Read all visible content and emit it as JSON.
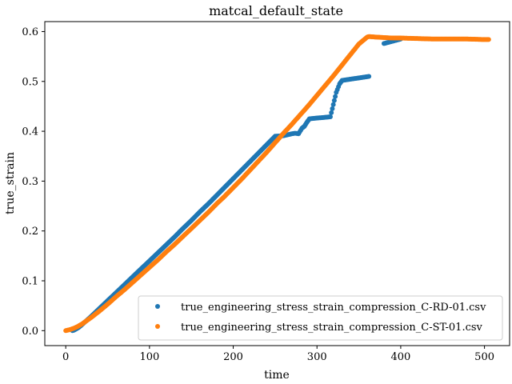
{
  "chart_data": {
    "type": "scatter",
    "title": "matcal_default_state",
    "xlabel": "time",
    "ylabel": "true_strain",
    "xlim": [
      -25,
      530
    ],
    "ylim": [
      -0.03,
      0.62
    ],
    "xticks": [
      0,
      100,
      200,
      300,
      400,
      500
    ],
    "yticks": [
      0.0,
      0.1,
      0.2,
      0.3,
      0.4,
      0.5,
      0.6
    ],
    "ytick_labels": [
      "0.0",
      "0.1",
      "0.2",
      "0.3",
      "0.4",
      "0.5",
      "0.6"
    ],
    "grid": false,
    "legend_position": "lower-right",
    "series": [
      {
        "name": "true_engineering_stress_strain_compression_C-RD-01.csv",
        "color": "#1f77b4",
        "x": [
          8,
          10,
          12,
          15,
          18,
          22,
          26,
          30,
          40,
          50,
          60,
          70,
          80,
          90,
          100,
          110,
          120,
          130,
          140,
          150,
          160,
          170,
          180,
          190,
          200,
          210,
          220,
          230,
          240,
          250,
          260,
          265,
          270,
          274,
          278,
          282,
          285,
          288,
          291,
          316,
          323,
          327,
          330,
          362,
          380,
          400
        ],
        "y": [
          0.0,
          0.001,
          0.003,
          0.006,
          0.01,
          0.016,
          0.022,
          0.028,
          0.044,
          0.06,
          0.076,
          0.092,
          0.108,
          0.124,
          0.14,
          0.156,
          0.172,
          0.188,
          0.205,
          0.221,
          0.238,
          0.254,
          0.271,
          0.288,
          0.305,
          0.322,
          0.339,
          0.356,
          0.373,
          0.39,
          0.391,
          0.393,
          0.395,
          0.396,
          0.395,
          0.406,
          0.41,
          0.418,
          0.425,
          0.429,
          0.478,
          0.495,
          0.502,
          0.51,
          0.576,
          0.585
        ]
      },
      {
        "name": "true_engineering_stress_strain_compression_C-ST-01.csv",
        "color": "#ff7f0e",
        "x": [
          0,
          5,
          10,
          15,
          20,
          30,
          40,
          50,
          60,
          70,
          80,
          90,
          100,
          110,
          120,
          130,
          140,
          150,
          160,
          170,
          180,
          190,
          200,
          210,
          220,
          230,
          240,
          250,
          260,
          270,
          280,
          290,
          300,
          310,
          320,
          330,
          340,
          350,
          360,
          362,
          370,
          380,
          390,
          400,
          420,
          440,
          460,
          480,
          500,
          505
        ],
        "y": [
          0.0,
          0.002,
          0.005,
          0.009,
          0.014,
          0.026,
          0.039,
          0.053,
          0.068,
          0.082,
          0.097,
          0.112,
          0.127,
          0.142,
          0.158,
          0.173,
          0.189,
          0.205,
          0.221,
          0.237,
          0.254,
          0.27,
          0.287,
          0.304,
          0.322,
          0.34,
          0.358,
          0.377,
          0.396,
          0.414,
          0.433,
          0.452,
          0.472,
          0.492,
          0.512,
          0.533,
          0.554,
          0.575,
          0.589,
          0.59,
          0.589,
          0.588,
          0.587,
          0.587,
          0.586,
          0.585,
          0.585,
          0.585,
          0.584,
          0.584
        ]
      }
    ]
  }
}
